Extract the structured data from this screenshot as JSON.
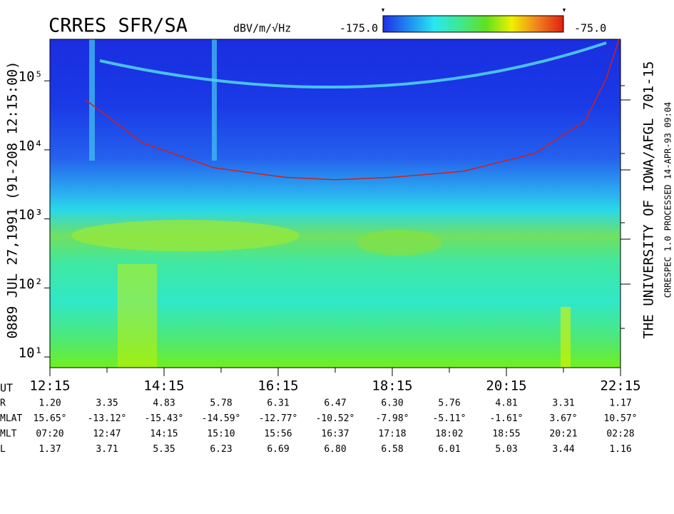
{
  "chart_data": {
    "type": "spectrogram",
    "title": "CRRES SFR/SA",
    "colorbar_label": "dBV/m/√Hz",
    "clim": [
      {
        "value": -175,
        "label": "-175.0"
      },
      {
        "value": -75,
        "label": "-75.0"
      }
    ],
    "colormap": [
      "#1f2fe6",
      "#1f8cf0",
      "#28e8f0",
      "#40e890",
      "#60e020",
      "#f0f000",
      "#f08020",
      "#e02010"
    ],
    "left_label": "0889  JUL 27,1991  (91-208 12:15:00)",
    "right_label": "THE UNIVERSITY OF IOWA/AFGL 701-15",
    "right_small_label": "CRRESPEC 1.0   PROCESSED 14-APR-93  09:04",
    "log_y": true,
    "xlim": [
      12.25,
      22.25
    ],
    "xticks": [
      {
        "value": 12.25,
        "label": "12:15"
      },
      {
        "value": 14.25,
        "label": "14:15"
      },
      {
        "value": 16.25,
        "label": "16:15"
      },
      {
        "value": 18.25,
        "label": "18:15"
      },
      {
        "value": 20.25,
        "label": "20:15"
      },
      {
        "value": 22.25,
        "label": "22:15"
      }
    ],
    "ylim": [
      7,
      400000
    ],
    "yticks": [
      {
        "value": 10,
        "label": "10¹"
      },
      {
        "value": 100,
        "label": "10²"
      },
      {
        "value": 1000,
        "label": "10³"
      },
      {
        "value": 10000,
        "label": "10⁴"
      },
      {
        "value": 100000,
        "label": "10⁵"
      }
    ],
    "series": [
      {
        "color": "#cc2020",
        "x": [
          12.875,
          13.875,
          15.125,
          16.375,
          17.25,
          18.25,
          19.5,
          20.75,
          21.625,
          22.0,
          22.225
        ],
        "values": [
          53000,
          12600,
          5500,
          4000,
          3700,
          4000,
          4900,
          8900,
          26000,
          107000,
          400000
        ]
      }
    ],
    "ephemeris": {
      "ut_label": "UT",
      "rows": [
        {
          "label": "R",
          "values": [
            "1.20",
            "3.35",
            "4.83",
            "5.78",
            "6.31",
            "6.47",
            "6.30",
            "5.76",
            "4.81",
            "3.31",
            "1.17"
          ]
        },
        {
          "label": "MLAT",
          "values": [
            "15.65°",
            "-13.12°",
            "-15.43°",
            "-14.59°",
            "-12.77°",
            "-10.52°",
            "-7.98°",
            "-5.11°",
            "-1.61°",
            "3.67°",
            "10.57°"
          ]
        },
        {
          "label": "MLT",
          "values": [
            "07:20",
            "12:47",
            "14:15",
            "15:10",
            "15:56",
            "16:37",
            "17:18",
            "18:02",
            "18:55",
            "20:21",
            "02:28"
          ]
        },
        {
          "label": "L",
          "values": [
            "1.37",
            "3.71",
            "5.35",
            "6.23",
            "6.69",
            "6.80",
            "6.58",
            "6.01",
            "5.03",
            "3.44",
            "1.16"
          ]
        }
      ]
    }
  }
}
